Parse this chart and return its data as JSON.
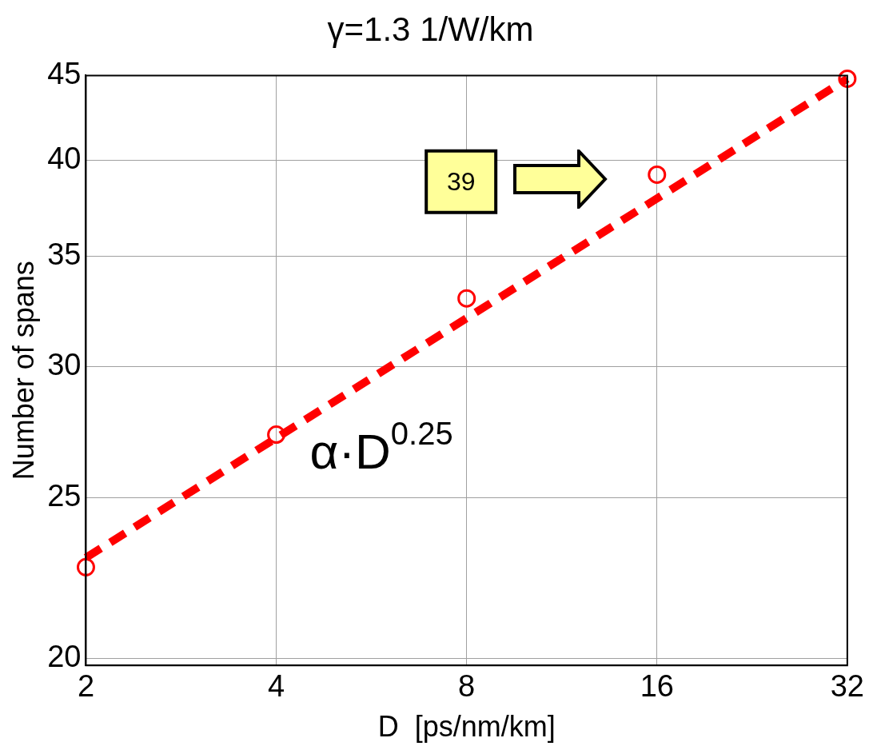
{
  "chart_data": {
    "type": "scatter",
    "title": "γ=1.3 1/W/km",
    "xlabel": "D  [ps/nm/km]",
    "ylabel": "Number of spans",
    "x": [
      2,
      4,
      8,
      16,
      32
    ],
    "series": [
      {
        "color": "#ff0000",
        "marker": "circle",
        "values": [
          22.7,
          27.3,
          33.0,
          39.2,
          44.8
        ]
      },
      {
        "type": "line",
        "color": "#ff0000",
        "marker": "none",
        "line_style": "dashed",
        "x": [
          2,
          32
        ],
        "values": [
          23.0,
          44.8
        ]
      }
    ],
    "log": "xy",
    "xlim": [
      2,
      32
    ],
    "xticks": [
      2,
      4,
      8,
      16,
      32
    ],
    "ylim": [
      19.8,
      45
    ],
    "yticks": [
      20,
      25,
      30,
      35,
      40,
      45
    ],
    "grid": true,
    "legend": false,
    "annotations": [
      "39",
      {
        "text": "α·D$^{0.25}$",
        "x": 4,
        "y": 27.3
      }
    ]
  }
}
